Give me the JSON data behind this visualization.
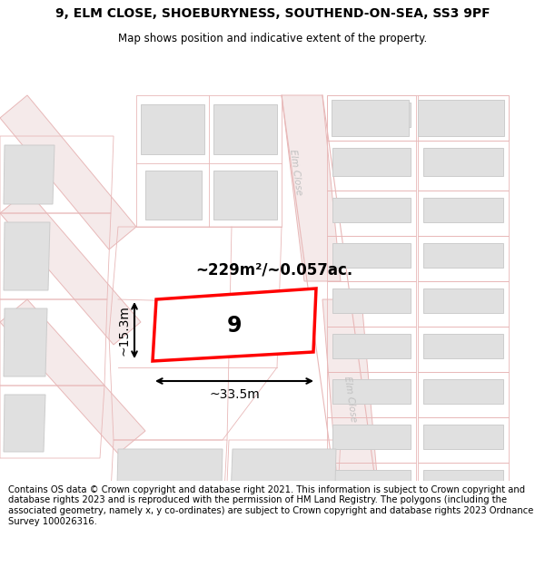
{
  "title": "9, ELM CLOSE, SHOEBURYNESS, SOUTHEND-ON-SEA, SS3 9PF",
  "subtitle": "Map shows position and indicative extent of the property.",
  "footer": "Contains OS data © Crown copyright and database right 2021. This information is subject to Crown copyright and database rights 2023 and is reproduced with the permission of HM Land Registry. The polygons (including the associated geometry, namely x, y co-ordinates) are subject to Crown copyright and database rights 2023 Ordnance Survey 100026316.",
  "area_label": "~229m²/~0.057ac.",
  "width_label": "~33.5m",
  "height_label": "~15.3m",
  "plot_number": "9",
  "map_bg": "#ffffff",
  "road_fill": "#f5eaea",
  "road_stroke": "#e8b8b8",
  "building_fill": "#e0e0e0",
  "building_stroke": "#cccccc",
  "plot_stroke": "#e8b8b8",
  "highlight_color": "#ff0000",
  "road_label_color": "#c0c0c0",
  "title_fontsize": 10,
  "subtitle_fontsize": 8.5,
  "footer_fontsize": 7.2
}
